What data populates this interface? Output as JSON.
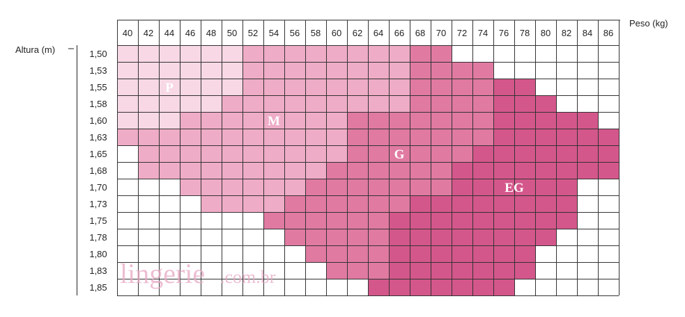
{
  "chart_data": {
    "type": "heatmap",
    "xlabel": "Peso (kg)",
    "ylabel": "Altura (m)",
    "x": [
      "40",
      "42",
      "44",
      "46",
      "48",
      "50",
      "52",
      "54",
      "56",
      "58",
      "60",
      "62",
      "64",
      "66",
      "68",
      "70",
      "72",
      "74",
      "76",
      "78",
      "80",
      "82",
      "84",
      "86"
    ],
    "y": [
      "1,50",
      "1,53",
      "1,55",
      "1,58",
      "1,60",
      "1,63",
      "1,65",
      "1,68",
      "1,70",
      "1,73",
      "1,75",
      "1,78",
      "1,80",
      "1,83",
      "1,85"
    ],
    "sizes": [
      {
        "name": "P",
        "color": "#f7d8e4"
      },
      {
        "name": "M",
        "color": "#efacc6"
      },
      {
        "name": "G",
        "color": "#e07aa1"
      },
      {
        "name": "EG",
        "color": "#d4578b"
      }
    ],
    "grid": [
      "PPPPPPMMMMMMMMGGX.......",
      "PPPPPPMMMMMMMMGGGGX.....",
      "PPPPPPMMMMMMMMGGGGEEX...",
      "PPPPPMMMMMMMMMGGGGEEEX..",
      "PPPMMMMMMMMGGGGGGGEEEEEX",
      "MMMMMMMMMMMGGGGGGGEEEEEE",
      ".MMMMMMMMMMGGGGGGEEEEEEE",
      ".MMMMMMMMMGGGGGGEEEEEEEE",
      "...MMMMMMGGGGGGGEEEEEEX.",
      "....MMMMGGGGGGEEEEEEEEX.",
      ".......GGGGGGEEEEEEEEEX.",
      "........GGGGGEEEEEEEEX..",
      ".........GGGGEEEEEEEX...",
      "..........GGGEEEEEEEX...",
      "............EEEEEEEX...."
    ],
    "labels": [
      {
        "text": "P",
        "row": 2,
        "col": 2
      },
      {
        "text": "M",
        "row": 4,
        "col": 7
      },
      {
        "text": "G",
        "row": 6,
        "col": 13
      },
      {
        "text": "EG",
        "row": 8,
        "col": 18.5
      }
    ],
    "watermark": {
      "main": "lingerie",
      "sub": ".com.br"
    },
    "grid_lines": true
  }
}
